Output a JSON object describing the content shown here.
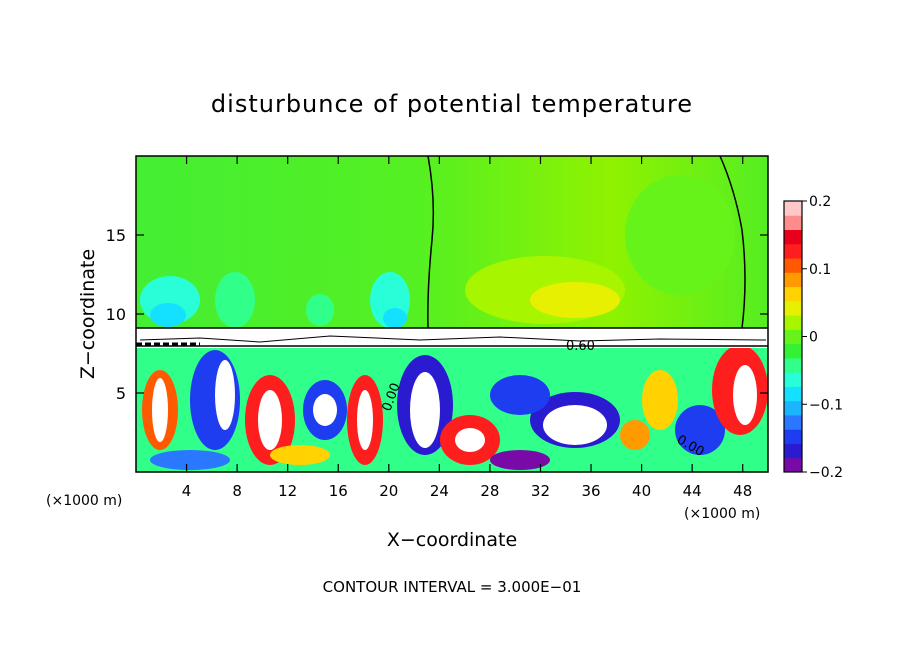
{
  "chart_data": {
    "type": "heatmap",
    "title": "disturbunce of potential temperature",
    "xlabel": "X−coordinate",
    "ylabel": "Z−coordinate",
    "xlim": [
      0,
      50000
    ],
    "ylim": [
      0,
      20000
    ],
    "x_ticks": [
      4000,
      8000,
      12000,
      16000,
      20000,
      24000,
      28000,
      32000,
      36000,
      40000,
      44000,
      48000
    ],
    "x_tick_labels": [
      "4",
      "8",
      "12",
      "16",
      "20",
      "24",
      "28",
      "32",
      "36",
      "40",
      "44",
      "48"
    ],
    "y_ticks": [
      5000,
      10000,
      15000
    ],
    "y_tick_labels": [
      "5",
      "10",
      "15"
    ],
    "x_unit_label": "(×1000 m)",
    "y_unit_label": "(×1000 m)",
    "colorbar": {
      "range": [
        -0.2,
        0.2
      ],
      "tick_values": [
        0.2,
        0.1,
        0,
        -0.1,
        -0.2
      ],
      "tick_labels": [
        "0.2",
        "0.1",
        "0",
        "−0.1",
        "−0.2"
      ],
      "colors": [
        "#7a0aa8",
        "#2a1ad0",
        "#1e3cf0",
        "#2a78ff",
        "#1ab4ff",
        "#14e0ff",
        "#28ffd8",
        "#30ff8a",
        "#33f233",
        "#66f31a",
        "#a8f500",
        "#e6f000",
        "#ffd200",
        "#ff9a00",
        "#ff5a00",
        "#ff1e1e",
        "#e8001a",
        "#ff8c8c",
        "#ffc8c8"
      ]
    },
    "contour_labels": [
      "0.60",
      "0.00",
      "0.00"
    ],
    "grid": false,
    "legend": "colorbar right"
  },
  "footer": {
    "contour_interval": "CONTOUR INTERVAL = 3.000E−01"
  }
}
